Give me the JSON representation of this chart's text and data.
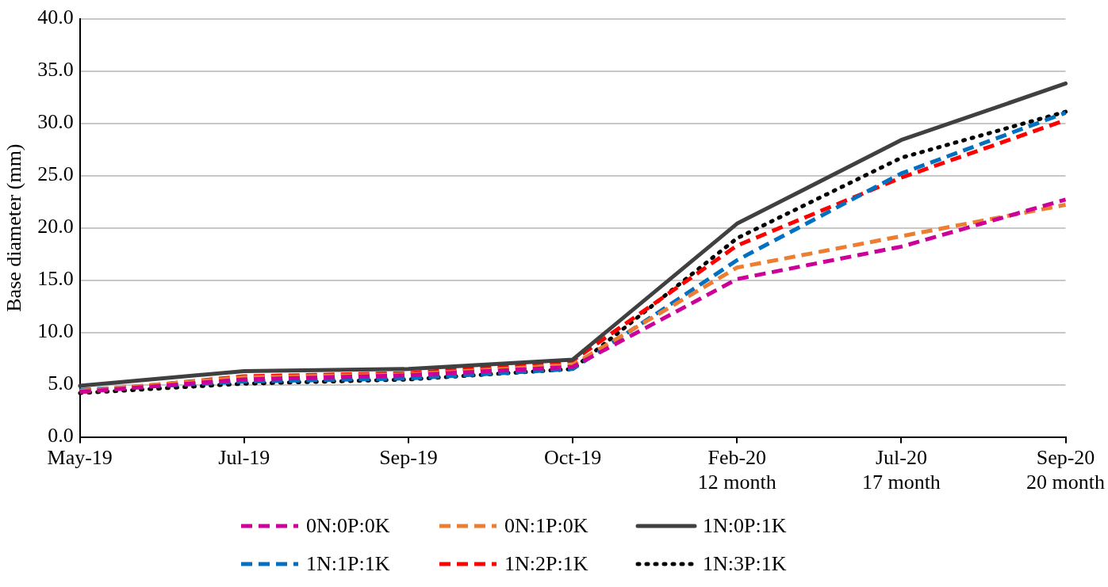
{
  "chart_data": {
    "type": "line",
    "ylabel": "Base diameter (mm)",
    "categories": [
      "May-19",
      "Jul-19",
      "Sep-19",
      "Oct-19",
      "Feb-20\n12 month",
      "Jul-20\n17 month",
      "Sep-20\n20 month"
    ],
    "series": [
      {
        "name": "0N:0P:0K",
        "color": "#cc0099",
        "line_style": "dashed",
        "values": [
          4.3,
          5.5,
          5.9,
          6.7,
          15.1,
          18.2,
          22.7
        ]
      },
      {
        "name": "0N:1P:0K",
        "color": "#ed7d31",
        "line_style": "dashed",
        "values": [
          4.4,
          5.7,
          6.0,
          6.9,
          16.2,
          19.2,
          22.2
        ]
      },
      {
        "name": "1N:0P:1K",
        "color": "#404040",
        "line_style": "solid",
        "values": [
          4.9,
          6.3,
          6.5,
          7.4,
          20.4,
          28.4,
          33.8
        ]
      },
      {
        "name": "1N:1P:1K",
        "color": "#0070c0",
        "line_style": "dashed",
        "values": [
          4.5,
          5.3,
          5.6,
          6.5,
          16.9,
          25.2,
          31.0
        ]
      },
      {
        "name": "1N:2P:1K",
        "color": "#ff0000",
        "line_style": "dashed",
        "values": [
          4.3,
          5.8,
          6.1,
          7.3,
          18.3,
          24.8,
          30.3
        ]
      },
      {
        "name": "1N:3P:1K",
        "color": "#000000",
        "line_style": "dotted",
        "values": [
          4.2,
          5.1,
          5.5,
          6.5,
          19.0,
          26.7,
          31.1
        ]
      }
    ],
    "ylim": [
      0,
      40
    ],
    "yticks": [
      {
        "value": 0,
        "label": "0.0"
      },
      {
        "value": 5,
        "label": "5.0"
      },
      {
        "value": 10,
        "label": "10.0"
      },
      {
        "value": 15,
        "label": "15.0"
      },
      {
        "value": 20,
        "label": "20.0"
      },
      {
        "value": 25,
        "label": "25.0"
      },
      {
        "value": 30,
        "label": "30.0"
      },
      {
        "value": 35,
        "label": "35.0"
      },
      {
        "value": 40,
        "label": "40.0"
      }
    ],
    "grid": "y",
    "legend": "bottom",
    "marker": "none"
  }
}
